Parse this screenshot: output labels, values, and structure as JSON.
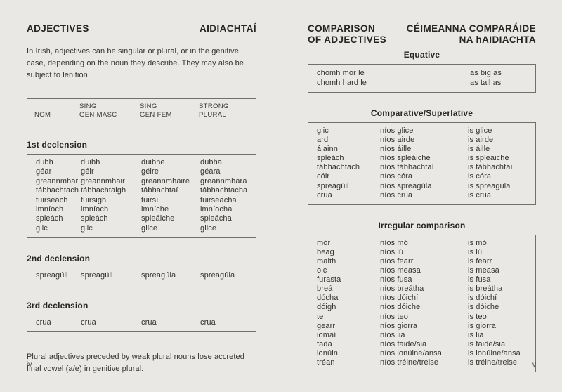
{
  "page_left": {
    "title_en": "ADJECTIVES",
    "title_ga": "AIDIACHTAÍ",
    "intro": "In Irish, adjectives can be singular or plural, or in the genitive case, depending on the noun they describe. They may also be subject to lenition.",
    "header_table": {
      "rows": [
        [
          "",
          "SING",
          "SING",
          "STRONG"
        ],
        [
          "NOM",
          "GEN MASC",
          "GEN FEM",
          "PLURAL"
        ]
      ]
    },
    "declensions": [
      {
        "heading": "1st declension",
        "rows": [
          [
            "dubh",
            "duibh",
            "duibhe",
            "dubha"
          ],
          [
            "géar",
            "géir",
            "géire",
            "géara"
          ],
          [
            "greannmhar",
            "greannmhair",
            "greannmhaire",
            "greannmhara"
          ],
          [
            "tábhachtach",
            "tábhachtaigh",
            "tábhachtaí",
            "tábhachtacha"
          ],
          [
            "tuirseach",
            "tuirsigh",
            "tuirsí",
            "tuirseacha"
          ],
          [
            "imníoch",
            "imníoch",
            "imníche",
            "imníocha"
          ],
          [
            "spleách",
            "spleách",
            "spleáiche",
            "spleácha"
          ],
          [
            "glic",
            "glic",
            "glice",
            "glice"
          ]
        ]
      },
      {
        "heading": "2nd declension",
        "rows": [
          [
            "spreagúil",
            "spreagúil",
            "spreagúla",
            "spreagúla"
          ]
        ]
      },
      {
        "heading": "3rd declension",
        "rows": [
          [
            "crua",
            "crua",
            "crua",
            "crua"
          ]
        ]
      }
    ],
    "footnote": "Plural adjectives preceded by weak plural nouns lose accreted final vowel (a/e) in genitive plural.",
    "page_number": "iv"
  },
  "page_right": {
    "title_en_line1": "COMPARISON",
    "title_en_line2": "OF ADJECTIVES",
    "title_ga_line1": "CÉIMEANNA COMPARÁIDE",
    "title_ga_line2": "NA hAIDIACHTA",
    "sections": [
      {
        "heading": "Equative",
        "rows": [
          [
            "chomh mór le",
            "as big as"
          ],
          [
            "chomh hard le",
            "as tall as"
          ]
        ]
      },
      {
        "heading": "Comparative/Superlative",
        "rows": [
          [
            "glic",
            "níos glice",
            "is glice"
          ],
          [
            "ard",
            "níos airde",
            "is airde"
          ],
          [
            "álainn",
            "níos áille",
            "is áille"
          ],
          [
            "spleách",
            "níos spleáiche",
            "is spleáiche"
          ],
          [
            "tábhachtach",
            "níos tábhachtaí",
            "is tábhachtaí"
          ],
          [
            "cóir",
            "níos córa",
            "is córa"
          ],
          [
            "spreagúil",
            "níos spreagúla",
            "is spreagúla"
          ],
          [
            "crua",
            "níos crua",
            "is crua"
          ]
        ]
      },
      {
        "heading": "Irregular comparison",
        "rows": [
          [
            "mór",
            "níos mó",
            "is mó"
          ],
          [
            "beag",
            "níos lú",
            "is lú"
          ],
          [
            "maith",
            "níos fearr",
            "is fearr"
          ],
          [
            "olc",
            "níos measa",
            "is measa"
          ],
          [
            "furasta",
            "níos fusa",
            "is fusa"
          ],
          [
            "breá",
            "níos breátha",
            "is breátha"
          ],
          [
            "dócha",
            "níos dóichí",
            "is dóichí"
          ],
          [
            "dóigh",
            "níos dóiche",
            "is dóiche"
          ],
          [
            "te",
            "níos teo",
            "is teo"
          ],
          [
            "gearr",
            "níos giorra",
            "is giorra"
          ],
          [
            "iomaí",
            "níos lia",
            "is lia"
          ],
          [
            "fada",
            "níos faide/sia",
            "is faide/sia"
          ],
          [
            "ionúin",
            "níos ionúine/ansa",
            "is ionúine/ansa"
          ],
          [
            "tréan",
            "níos tréine/treise",
            "is tréine/treise"
          ]
        ]
      }
    ],
    "page_number": "v"
  }
}
